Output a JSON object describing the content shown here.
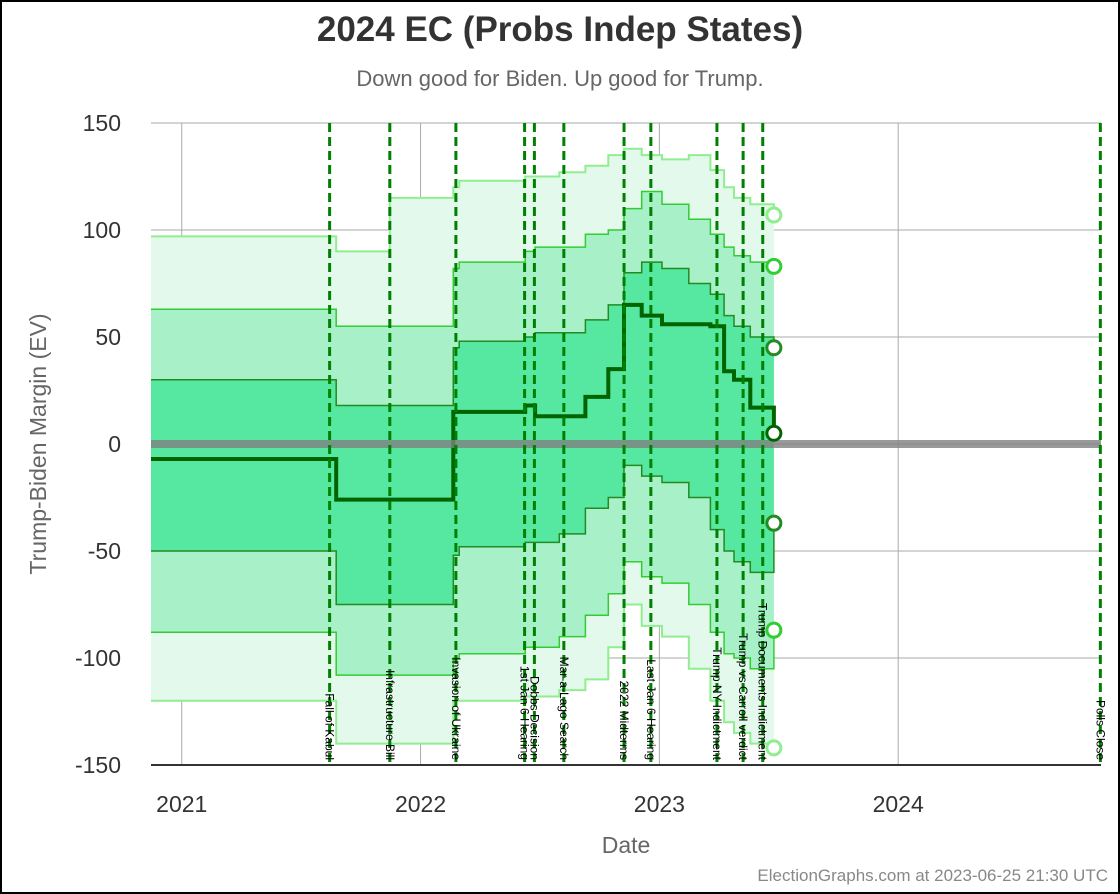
{
  "chart_data": {
    "type": "area",
    "title": "2024 EC (Probs Indep States)",
    "subtitle": "Down good for Biden. Up good for Trump.",
    "xlabel": "Date",
    "ylabel": "Trump-Biden Margin (EV)",
    "ylim": [
      -150,
      150
    ],
    "xlim": [
      "2020-11-15",
      "2024-11-06"
    ],
    "yticks": [
      150,
      100,
      50,
      0,
      -50,
      -100,
      -150
    ],
    "xticks": [
      {
        "date": "2021-01-01",
        "label": "2021"
      },
      {
        "date": "2022-01-01",
        "label": "2022"
      },
      {
        "date": "2023-01-01",
        "label": "2023"
      },
      {
        "date": "2024-01-01",
        "label": "2024"
      }
    ],
    "grid": true,
    "credit": "ElectionGraphs.com at 2023-06-25 21:30 UTC",
    "band_colors": {
      "outer": "#e2f9ec",
      "middle": "#a8f0c8",
      "inner": "#56e8a0",
      "outer_line": "#90ee90",
      "middle_line": "#32cd32",
      "inner_line": "#228b22",
      "median": "#006400",
      "zero": "#7f7f7f",
      "event": "#008000"
    },
    "dates": [
      "2020-11-15",
      "2021-08-15",
      "2021-08-25",
      "2021-11-08",
      "2021-11-15",
      "2022-02-20",
      "2022-03-01",
      "2022-06-10",
      "2022-06-25",
      "2022-08-01",
      "2022-09-10",
      "2022-10-15",
      "2022-11-08",
      "2022-12-05",
      "2023-01-05",
      "2023-02-15",
      "2023-03-20",
      "2023-04-10",
      "2023-04-25",
      "2023-05-20",
      "2023-06-25"
    ],
    "series": [
      {
        "name": "max",
        "values": [
          -120,
          -120,
          -140,
          -140,
          -140,
          -120,
          -120,
          -118,
          -118,
          -115,
          -110,
          -95,
          -75,
          -85,
          -90,
          -105,
          -120,
          -130,
          -135,
          -140,
          -142
        ]
      },
      {
        "name": "p5",
        "values": [
          -88,
          -88,
          -108,
          -108,
          -108,
          -100,
          -98,
          -95,
          -95,
          -90,
          -80,
          -70,
          -55,
          -62,
          -65,
          -75,
          -88,
          -98,
          -100,
          -105,
          -87
        ]
      },
      {
        "name": "p25",
        "values": [
          -50,
          -50,
          -75,
          -75,
          -75,
          -52,
          -48,
          -46,
          -46,
          -42,
          -30,
          -25,
          -10,
          -15,
          -18,
          -25,
          -40,
          -50,
          -55,
          -60,
          -37
        ]
      },
      {
        "name": "median",
        "values": [
          -7,
          -7,
          -26,
          -26,
          -26,
          15,
          15,
          18,
          13,
          13,
          22,
          35,
          65,
          60,
          56,
          56,
          55,
          34,
          30,
          17,
          5
        ]
      },
      {
        "name": "p75",
        "values": [
          30,
          30,
          18,
          18,
          18,
          45,
          48,
          50,
          52,
          52,
          58,
          65,
          80,
          85,
          82,
          75,
          70,
          60,
          55,
          50,
          45
        ]
      },
      {
        "name": "p95",
        "values": [
          63,
          63,
          55,
          55,
          55,
          82,
          85,
          90,
          92,
          92,
          98,
          100,
          110,
          118,
          112,
          105,
          98,
          92,
          88,
          85,
          83
        ]
      },
      {
        "name": "min",
        "values": [
          97,
          97,
          90,
          90,
          115,
          120,
          123,
          125,
          125,
          127,
          130,
          135,
          138,
          135,
          133,
          135,
          128,
          120,
          115,
          112,
          107
        ]
      }
    ],
    "endpoint_values": [
      107,
      83,
      45,
      5,
      -37,
      -87,
      -142
    ],
    "events": [
      {
        "date": "2021-08-15",
        "label": "Fall of Kabul"
      },
      {
        "date": "2021-11-15",
        "label": "Infrastructure Bill"
      },
      {
        "date": "2022-02-24",
        "label": "Invasion of Ukraine"
      },
      {
        "date": "2022-06-09",
        "label": "1st Jan 6 Hearing"
      },
      {
        "date": "2022-06-24",
        "label": "Dobbs Decision"
      },
      {
        "date": "2022-08-08",
        "label": "Mar-a-Lago Search"
      },
      {
        "date": "2022-11-08",
        "label": "2022 Midterms"
      },
      {
        "date": "2022-12-19",
        "label": "Last Jan 6 Hearing"
      },
      {
        "date": "2023-03-30",
        "label": "Trump NY Indictment"
      },
      {
        "date": "2023-05-09",
        "label": "Trump vs Carroll verdict"
      },
      {
        "date": "2023-06-08",
        "label": "Trump Documents Indictment"
      },
      {
        "date": "2024-11-05",
        "label": "Polls Close"
      }
    ]
  }
}
